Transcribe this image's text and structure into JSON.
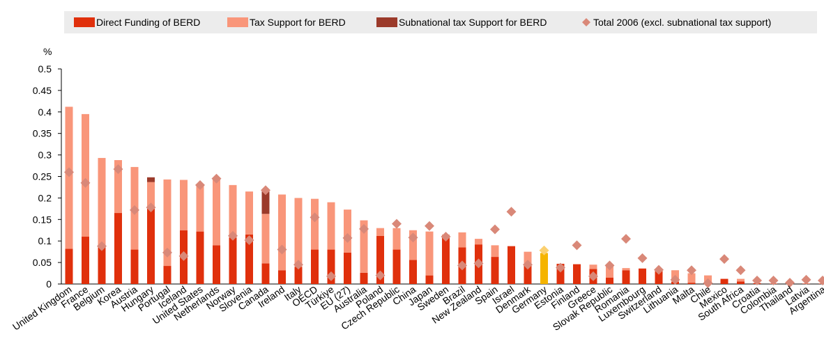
{
  "chart_data": {
    "type": "stacked-bar-marker",
    "y_label": "%",
    "categories": [
      "United Kingdom",
      "France",
      "Belgium",
      "Korea",
      "Austria",
      "Hungary",
      "Portugal",
      "Iceland",
      "United States",
      "Netherlands",
      "Norway",
      "Slovenia",
      "Canada",
      "Ireland",
      "Italy",
      "OECD",
      "Türkiye",
      "EU (27)",
      "Australia",
      "Poland",
      "Czech Republic",
      "China",
      "Japan",
      "Sweden",
      "Brazil",
      "New Zealand",
      "Spain",
      "Israel",
      "Denmark",
      "Germany",
      "Estonia",
      "Finland",
      "Greece",
      "Slovak Republic",
      "Romania",
      "Luxembourg",
      "Switzerland",
      "Lithuania",
      "Malta",
      "Chile",
      "Mexico",
      "South Africa",
      "Croatia",
      "Colombia",
      "Thailand",
      "Latvia",
      "Argentina"
    ],
    "series": [
      {
        "name": "Direct Funding of BERD",
        "color": "#e0300c",
        "highlight_color": "#f5b400",
        "kind": "bar",
        "values": [
          0.082,
          0.11,
          0.085,
          0.165,
          0.08,
          0.175,
          0.042,
          0.125,
          0.122,
          0.09,
          0.108,
          0.115,
          0.048,
          0.032,
          0.04,
          0.08,
          0.08,
          0.073,
          0.026,
          0.112,
          0.08,
          0.056,
          0.02,
          0.11,
          0.085,
          0.092,
          0.063,
          0.088,
          0.045,
          0.072,
          0.047,
          0.046,
          0.035,
          0.015,
          0.032,
          0.036,
          0.03,
          0.005,
          0.003,
          0.003,
          0.012,
          0.006,
          0.002,
          0.001,
          0,
          0.001,
          0.001
        ]
      },
      {
        "name": "Tax Support for BERD",
        "color": "#f9967a",
        "highlight_color": "#fcd07a",
        "kind": "bar",
        "values": [
          0.33,
          0.285,
          0.208,
          0.123,
          0.192,
          0.062,
          0.201,
          0.117,
          0.11,
          0.152,
          0.122,
          0.1,
          0.115,
          0.176,
          0.16,
          0.118,
          0.11,
          0.1,
          0.122,
          0.018,
          0.05,
          0.069,
          0.102,
          0.005,
          0.035,
          0.013,
          0.027,
          0,
          0.03,
          0,
          0,
          0,
          0.01,
          0.025,
          0.005,
          0,
          0,
          0.027,
          0.022,
          0.017,
          0,
          0.006,
          0,
          0,
          0,
          0,
          0
        ]
      },
      {
        "name": "Subnational tax Support for BERD",
        "color": "#9b3a2a",
        "highlight_color": "#c98a00",
        "kind": "bar",
        "values": [
          0,
          0,
          0,
          0,
          0,
          0.011,
          0,
          0,
          0,
          0,
          0,
          0,
          0.052,
          0,
          0,
          0,
          0,
          0,
          0,
          0,
          0,
          0,
          0,
          0,
          0,
          0,
          0,
          0,
          0,
          0,
          0,
          0,
          0,
          0,
          0,
          0,
          0,
          0,
          0,
          0,
          0,
          0,
          0,
          0,
          0,
          0,
          0
        ]
      },
      {
        "name": "Total 2006 (excl. subnational tax support)",
        "color": "#d98878",
        "highlight_color": "#fbd070",
        "kind": "marker",
        "values": [
          0.26,
          0.235,
          0.088,
          0.267,
          0.172,
          0.178,
          0.073,
          0.065,
          0.23,
          0.245,
          0.112,
          0.102,
          0.218,
          0.08,
          0.045,
          0.155,
          0.018,
          0.107,
          0.128,
          0.02,
          0.14,
          0.108,
          0.135,
          0.11,
          0.043,
          0.048,
          0.127,
          0.168,
          0.045,
          0.078,
          0.038,
          0.09,
          0.018,
          0.043,
          0.105,
          0.06,
          0.033,
          0.01,
          0.032,
          0.002,
          0.058,
          0.032,
          0.008,
          0.008,
          0.003,
          0.01,
          0.008
        ]
      }
    ],
    "highlight_index": 29,
    "ylim": [
      0,
      0.5
    ],
    "yticks": [
      0,
      0.05,
      0.1,
      0.15,
      0.2,
      0.25,
      0.3,
      0.35,
      0.4,
      0.45,
      0.5
    ],
    "grid": false
  }
}
